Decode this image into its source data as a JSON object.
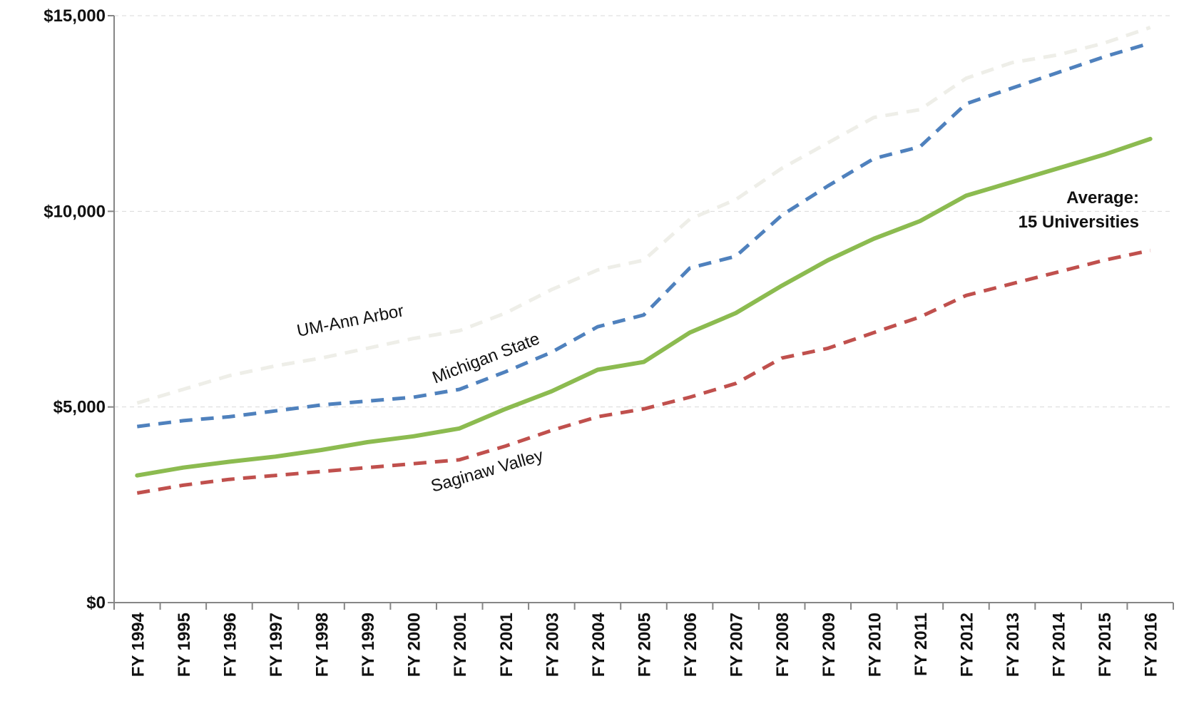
{
  "chart_data": {
    "type": "line",
    "title": "",
    "xlabel": "",
    "ylabel": "",
    "ylim": [
      0,
      15000
    ],
    "yticks": [
      0,
      5000,
      10000,
      15000
    ],
    "ytick_labels": [
      "$0",
      "$5,000",
      "$10,000",
      "$15,000"
    ],
    "grid": "horizontal dashed, light gray",
    "legend": "none (series labeled inline)",
    "categories": [
      "FY 1994",
      "FY 1995",
      "FY 1996",
      "FY 1997",
      "FY 1998",
      "FY 1999",
      "FY 2000",
      "FY 2001",
      "FY 2001",
      "FY 2003",
      "FY 2004",
      "FY 2005",
      "FY 2006",
      "FY 2007",
      "FY 2008",
      "FY 2009",
      "FY 2010",
      "FY 2011",
      "FY 2012",
      "FY 2013",
      "FY 2014",
      "FY 2015",
      "FY 2016"
    ],
    "series": [
      {
        "name": "UM-Ann Arbor",
        "color": "#eeeee8",
        "dash": "dashed",
        "values": [
          5100,
          5450,
          5800,
          6050,
          6250,
          6500,
          6750,
          6950,
          7400,
          8000,
          8500,
          8750,
          9800,
          10300,
          11100,
          11750,
          12400,
          12600,
          13400,
          13800,
          14000,
          14300,
          14700
        ]
      },
      {
        "name": "Michigan State",
        "color": "#4f81bd",
        "dash": "dashed",
        "values": [
          4500,
          4650,
          4750,
          4900,
          5050,
          5150,
          5250,
          5450,
          5900,
          6400,
          7050,
          7350,
          8550,
          8850,
          9900,
          10650,
          11350,
          11650,
          12750,
          13150,
          13550,
          13950,
          14300
        ]
      },
      {
        "name": "Average: 15 Universities",
        "color": "#8cbb50",
        "dash": "solid",
        "values": [
          3250,
          3450,
          3600,
          3730,
          3900,
          4100,
          4250,
          4450,
          4950,
          5400,
          5950,
          6150,
          6900,
          7400,
          8100,
          8750,
          9300,
          9750,
          10400,
          10750,
          11100,
          11450,
          11850
        ]
      },
      {
        "name": "Saginaw Valley",
        "color": "#c0504d",
        "dash": "dashed",
        "values": [
          2800,
          3000,
          3150,
          3250,
          3350,
          3450,
          3550,
          3650,
          4000,
          4400,
          4750,
          4950,
          5250,
          5600,
          6250,
          6500,
          6900,
          7300,
          7850,
          8150,
          8450,
          8750,
          9000
        ]
      }
    ],
    "annotations": {
      "um_ann_arbor": "UM-Ann Arbor",
      "michigan_state": "Michigan State",
      "saginaw_valley": "Saginaw Valley",
      "average_line1": "Average:",
      "average_line2": "15 Universities"
    }
  }
}
